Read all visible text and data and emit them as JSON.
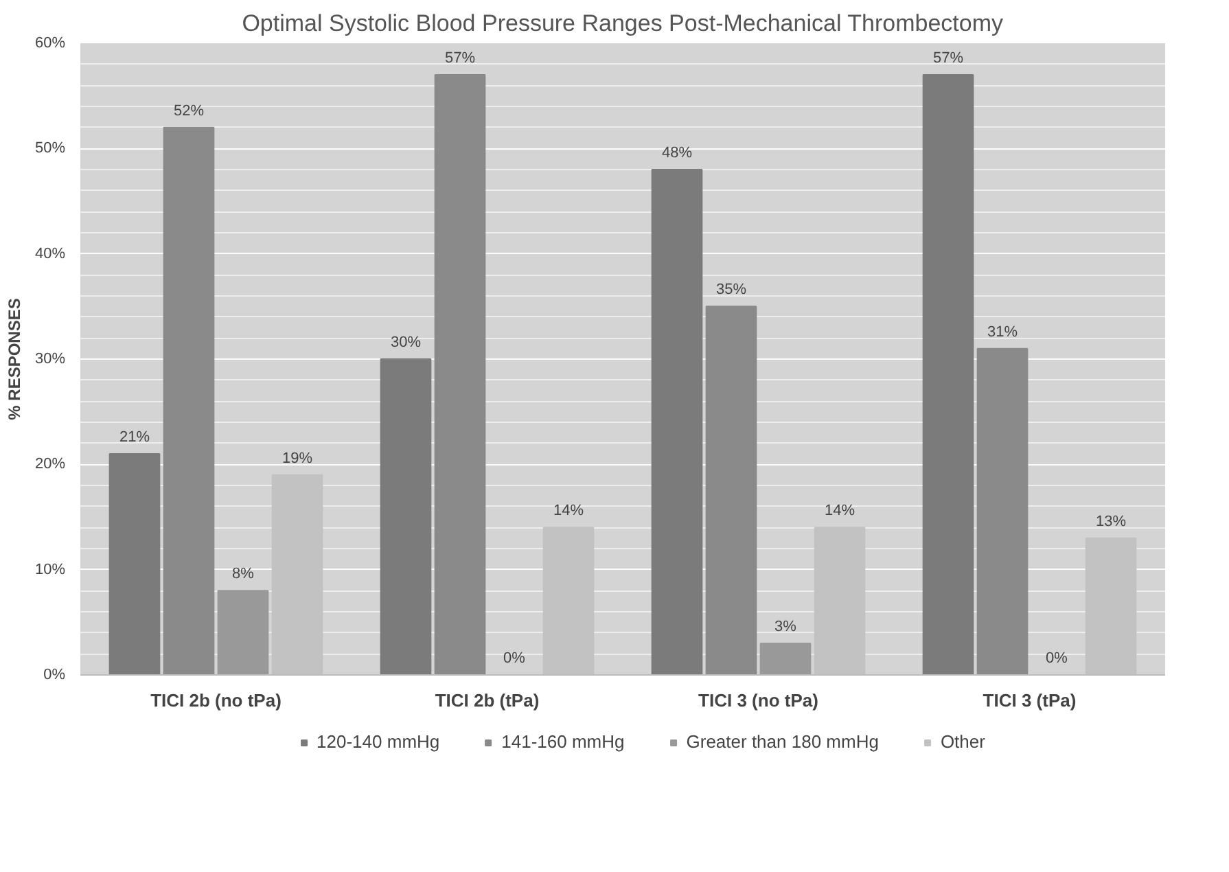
{
  "chart_data": {
    "type": "bar",
    "title": "Optimal Systolic Blood Pressure Ranges Post-Mechanical Thrombectomy",
    "ylabel": "% RESPONSES",
    "categories": [
      "TICI 2b (no tPa)",
      "TICI 2b (tPa)",
      "TICI 3 (no tPa)",
      "TICI 3 (tPa)"
    ],
    "series": [
      {
        "name": "120-140 mmHg",
        "color": "#7b7b7b",
        "values": [
          21,
          30,
          48,
          57
        ],
        "value_labels": [
          "21%",
          "30%",
          "48%",
          "57%"
        ]
      },
      {
        "name": "141-160 mmHg",
        "color": "#8a8a8a",
        "values": [
          52,
          57,
          35,
          31
        ],
        "value_labels": [
          "52%",
          "57%",
          "35%",
          "31%"
        ]
      },
      {
        "name": "Greater than 180 mmHg",
        "color": "#999999",
        "values": [
          8,
          0,
          3,
          0
        ],
        "value_labels": [
          "8%",
          "0%",
          "3%",
          "0%"
        ]
      },
      {
        "name": "Other",
        "color": "#c2c2c2",
        "values": [
          19,
          14,
          14,
          13
        ],
        "value_labels": [
          "19%",
          "14%",
          "14%",
          "13%"
        ]
      }
    ],
    "ylim": [
      0,
      60
    ],
    "yticks": [
      {
        "value": 0,
        "label": "0%"
      },
      {
        "value": 10,
        "label": "10%"
      },
      {
        "value": 20,
        "label": "20%"
      },
      {
        "value": 30,
        "label": "30%"
      },
      {
        "value": 40,
        "label": "40%"
      },
      {
        "value": 50,
        "label": "50%"
      },
      {
        "value": 60,
        "label": "60%"
      }
    ],
    "grid": "y",
    "legend": "bottom"
  }
}
